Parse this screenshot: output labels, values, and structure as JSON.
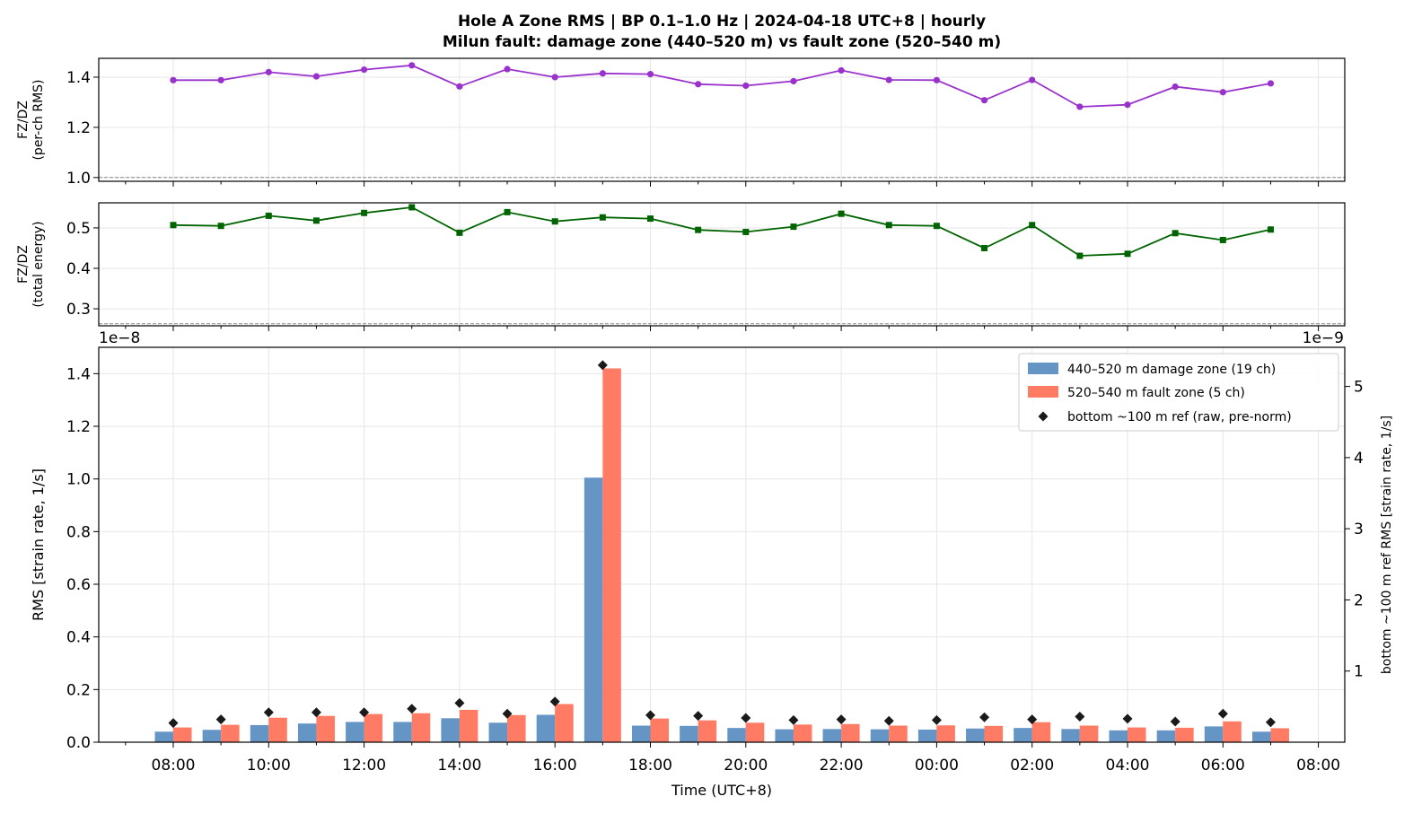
{
  "chart_data": [
    {
      "id": "ratio-per-ch",
      "type": "line",
      "title": "Hole A Zone RMS  |  BP 0.1–1.0 Hz  |  2024-04-18 UTC+8  |  hourly",
      "subtitle": "Milun fault: damage zone (440–520 m) vs fault zone (520–540 m)",
      "ylabel": [
        "FZ/DZ",
        "(per-ch RMS)"
      ],
      "ylim": [
        0.985,
        1.475
      ],
      "yticks": [
        1.0,
        1.2,
        1.4
      ],
      "ytick_labels": [
        "1.0",
        "1.2",
        "1.4"
      ],
      "reference_line": 1.0,
      "color": "#9932CC",
      "marker": "circle",
      "x": [
        "08:00",
        "09:00",
        "10:00",
        "11:00",
        "12:00",
        "13:00",
        "14:00",
        "15:00",
        "16:00",
        "17:00",
        "18:00",
        "19:00",
        "20:00",
        "21:00",
        "22:00",
        "23:00",
        "00:00",
        "01:00",
        "02:00",
        "03:00",
        "04:00",
        "05:00",
        "06:00",
        "07:00"
      ],
      "values": [
        1.388,
        1.388,
        1.42,
        1.403,
        1.43,
        1.447,
        1.363,
        1.432,
        1.4,
        1.415,
        1.412,
        1.372,
        1.366,
        1.384,
        1.427,
        1.389,
        1.388,
        1.308,
        1.389,
        1.282,
        1.29,
        1.362,
        1.34,
        1.375
      ]
    },
    {
      "id": "ratio-total-energy",
      "type": "line",
      "ylabel": [
        "FZ/DZ",
        "(total energy)"
      ],
      "ylim": [
        0.258,
        0.562
      ],
      "yticks": [
        0.3,
        0.4,
        0.5
      ],
      "ytick_labels": [
        "0.3",
        "0.4",
        "0.5"
      ],
      "reference_line": 0.263,
      "color": "#006400",
      "marker": "square",
      "x": [
        "08:00",
        "09:00",
        "10:00",
        "11:00",
        "12:00",
        "13:00",
        "14:00",
        "15:00",
        "16:00",
        "17:00",
        "18:00",
        "19:00",
        "20:00",
        "21:00",
        "22:00",
        "23:00",
        "00:00",
        "01:00",
        "02:00",
        "03:00",
        "04:00",
        "05:00",
        "06:00",
        "07:00"
      ],
      "values": [
        0.507,
        0.505,
        0.53,
        0.518,
        0.537,
        0.551,
        0.488,
        0.539,
        0.516,
        0.526,
        0.523,
        0.495,
        0.49,
        0.503,
        0.535,
        0.507,
        0.505,
        0.45,
        0.507,
        0.431,
        0.436,
        0.487,
        0.47,
        0.496
      ]
    },
    {
      "id": "rms-bars",
      "type": "bar",
      "xlabel": "Time (UTC+8)",
      "ylabel": "RMS  [strain rate, 1/s]",
      "y_offset_label": "1e−8",
      "ylim": [
        0,
        1.5
      ],
      "yticks": [
        0.0,
        0.2,
        0.4,
        0.6,
        0.8,
        1.0,
        1.2,
        1.4
      ],
      "ytick_labels": [
        "0.0",
        "0.2",
        "0.4",
        "0.6",
        "0.8",
        "1.0",
        "1.2",
        "1.4"
      ],
      "y2label": "bottom ~100 m ref RMS  [strain rate, 1/s]",
      "y2_offset_label": "1e−9",
      "y2lim": [
        0,
        5.55
      ],
      "y2ticks": [
        1,
        2,
        3,
        4,
        5
      ],
      "y2tick_labels": [
        "1",
        "2",
        "3",
        "4",
        "5"
      ],
      "xtick_labels": [
        "08:00",
        "10:00",
        "12:00",
        "14:00",
        "16:00",
        "18:00",
        "20:00",
        "22:00",
        "00:00",
        "02:00",
        "04:00",
        "06:00",
        "08:00"
      ],
      "categories": [
        "08:00",
        "09:00",
        "10:00",
        "11:00",
        "12:00",
        "13:00",
        "14:00",
        "15:00",
        "16:00",
        "17:00",
        "18:00",
        "19:00",
        "20:00",
        "21:00",
        "22:00",
        "23:00",
        "00:00",
        "01:00",
        "02:00",
        "03:00",
        "04:00",
        "05:00",
        "06:00",
        "07:00"
      ],
      "legend_position": "upper-right",
      "series": [
        {
          "name": "440–520 m  damage zone (19 ch)",
          "color": "#6495C4",
          "axis": "left",
          "values": [
            0.04,
            0.047,
            0.065,
            0.071,
            0.077,
            0.077,
            0.091,
            0.074,
            0.104,
            1.005,
            0.063,
            0.062,
            0.054,
            0.049,
            0.05,
            0.049,
            0.048,
            0.052,
            0.054,
            0.05,
            0.045,
            0.045,
            0.06,
            0.04
          ]
        },
        {
          "name": "520–540 m  fault zone (5 ch)",
          "color": "#FF7B63",
          "axis": "left",
          "values": [
            0.056,
            0.066,
            0.093,
            0.1,
            0.107,
            0.11,
            0.123,
            0.103,
            0.145,
            1.42,
            0.09,
            0.083,
            0.074,
            0.067,
            0.069,
            0.063,
            0.064,
            0.062,
            0.076,
            0.063,
            0.056,
            0.055,
            0.079,
            0.053
          ]
        },
        {
          "name": "bottom ~100 m ref (raw, pre-norm)",
          "color": "#1a1a1a",
          "axis": "right",
          "marker": "diamond",
          "values": [
            0.27,
            0.32,
            0.42,
            0.42,
            0.42,
            0.47,
            0.55,
            0.4,
            0.57,
            5.3,
            0.38,
            0.37,
            0.34,
            0.31,
            0.32,
            0.3,
            0.31,
            0.35,
            0.32,
            0.36,
            0.33,
            0.29,
            0.4,
            0.28
          ]
        }
      ]
    }
  ]
}
